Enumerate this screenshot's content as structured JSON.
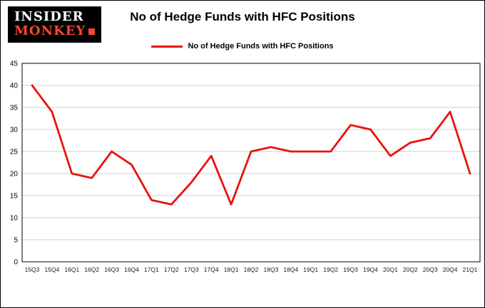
{
  "logo": {
    "line1": "INSIDER",
    "line2": "MONKEY",
    "color_monkey": "#f0492f",
    "color_insider": "#ffffff",
    "background": "#000000"
  },
  "chart_data": {
    "type": "line",
    "title": "No of Hedge Funds with HFC Positions",
    "legend": "No of Hedge Funds with HFC Positions",
    "categories": [
      "15Q3",
      "15Q4",
      "16Q1",
      "16Q2",
      "16Q3",
      "16Q4",
      "17Q1",
      "17Q2",
      "17Q3",
      "17Q4",
      "18Q1",
      "18Q2",
      "18Q3",
      "18Q4",
      "19Q1",
      "19Q2",
      "19Q3",
      "19Q4",
      "20Q1",
      "20Q2",
      "20Q3",
      "20Q4",
      "21Q1"
    ],
    "values": [
      40,
      34,
      20,
      19,
      25,
      22,
      14,
      13,
      18,
      24,
      13,
      25,
      26,
      25,
      25,
      25,
      31,
      30,
      24,
      27,
      28,
      34,
      20
    ],
    "ylim": [
      0,
      45
    ],
    "ytick_step": 5,
    "yticks": [
      0,
      5,
      10,
      15,
      20,
      25,
      30,
      35,
      40,
      45
    ],
    "line_color": "#e8120e",
    "grid": true,
    "gridline_color": "#cfcfcf",
    "legend_position": "top"
  }
}
